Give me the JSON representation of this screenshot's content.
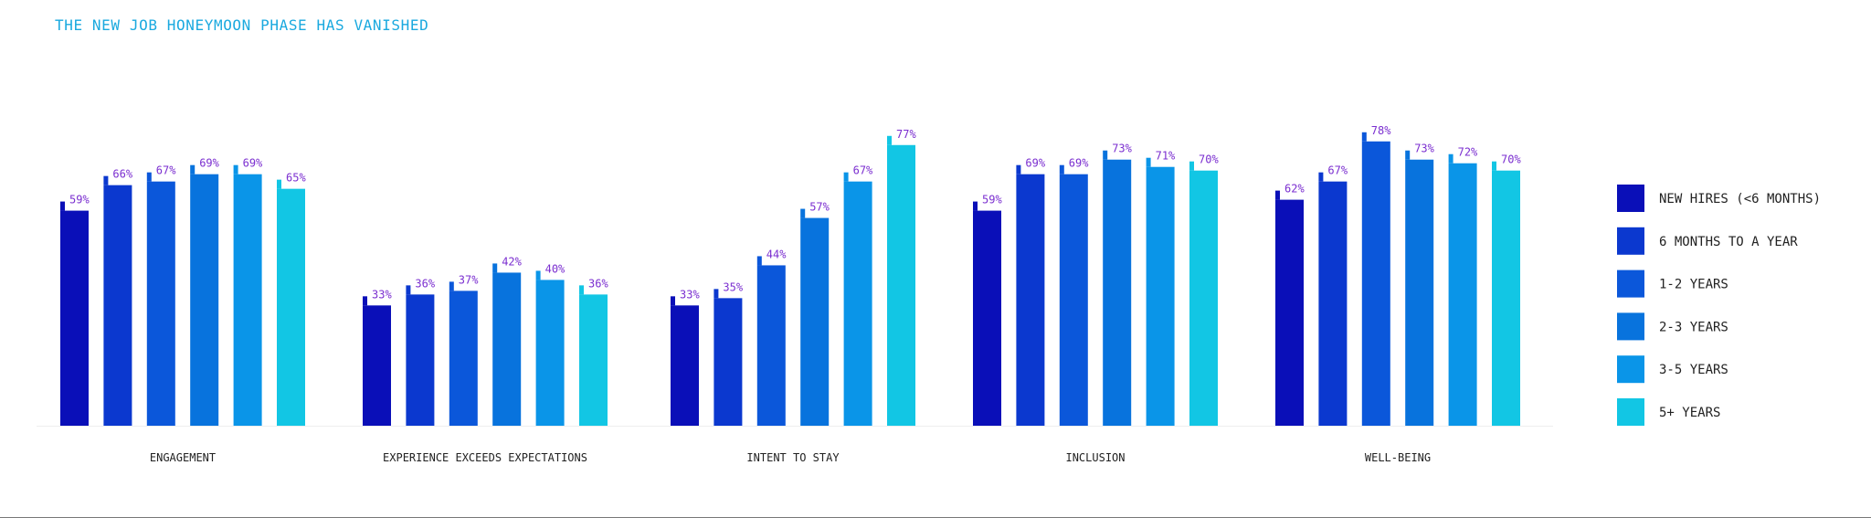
{
  "chart_data": {
    "type": "bar",
    "title": "THE NEW JOB HONEYMOON PHASE HAS VANISHED",
    "categories": [
      "ENGAGEMENT",
      "EXPERIENCE EXCEEDS EXPECTATIONS",
      "INTENT TO STAY",
      "INCLUSION",
      "WELL-BEING"
    ],
    "series": [
      {
        "name": "NEW HIRES (<6 MONTHS)",
        "color": "#0a0fb8",
        "values": [
          59,
          33,
          33,
          59,
          62
        ]
      },
      {
        "name": "6 MONTHS TO A YEAR",
        "color": "#0b38cf",
        "values": [
          66,
          36,
          35,
          69,
          67
        ]
      },
      {
        "name": "1-2 YEARS",
        "color": "#0b57da",
        "values": [
          67,
          37,
          44,
          69,
          78
        ]
      },
      {
        "name": "2-3 YEARS",
        "color": "#0873dd",
        "values": [
          69,
          42,
          57,
          73,
          73
        ]
      },
      {
        "name": "3-5 YEARS",
        "color": "#0a95e8",
        "values": [
          69,
          40,
          67,
          71,
          72
        ]
      },
      {
        "name": "5+ YEARS",
        "color": "#12c6e4",
        "values": [
          65,
          36,
          77,
          70,
          70
        ]
      }
    ],
    "value_suffix": "%",
    "ylim": [
      0,
      100
    ],
    "grid": false,
    "legend_position": "right"
  }
}
